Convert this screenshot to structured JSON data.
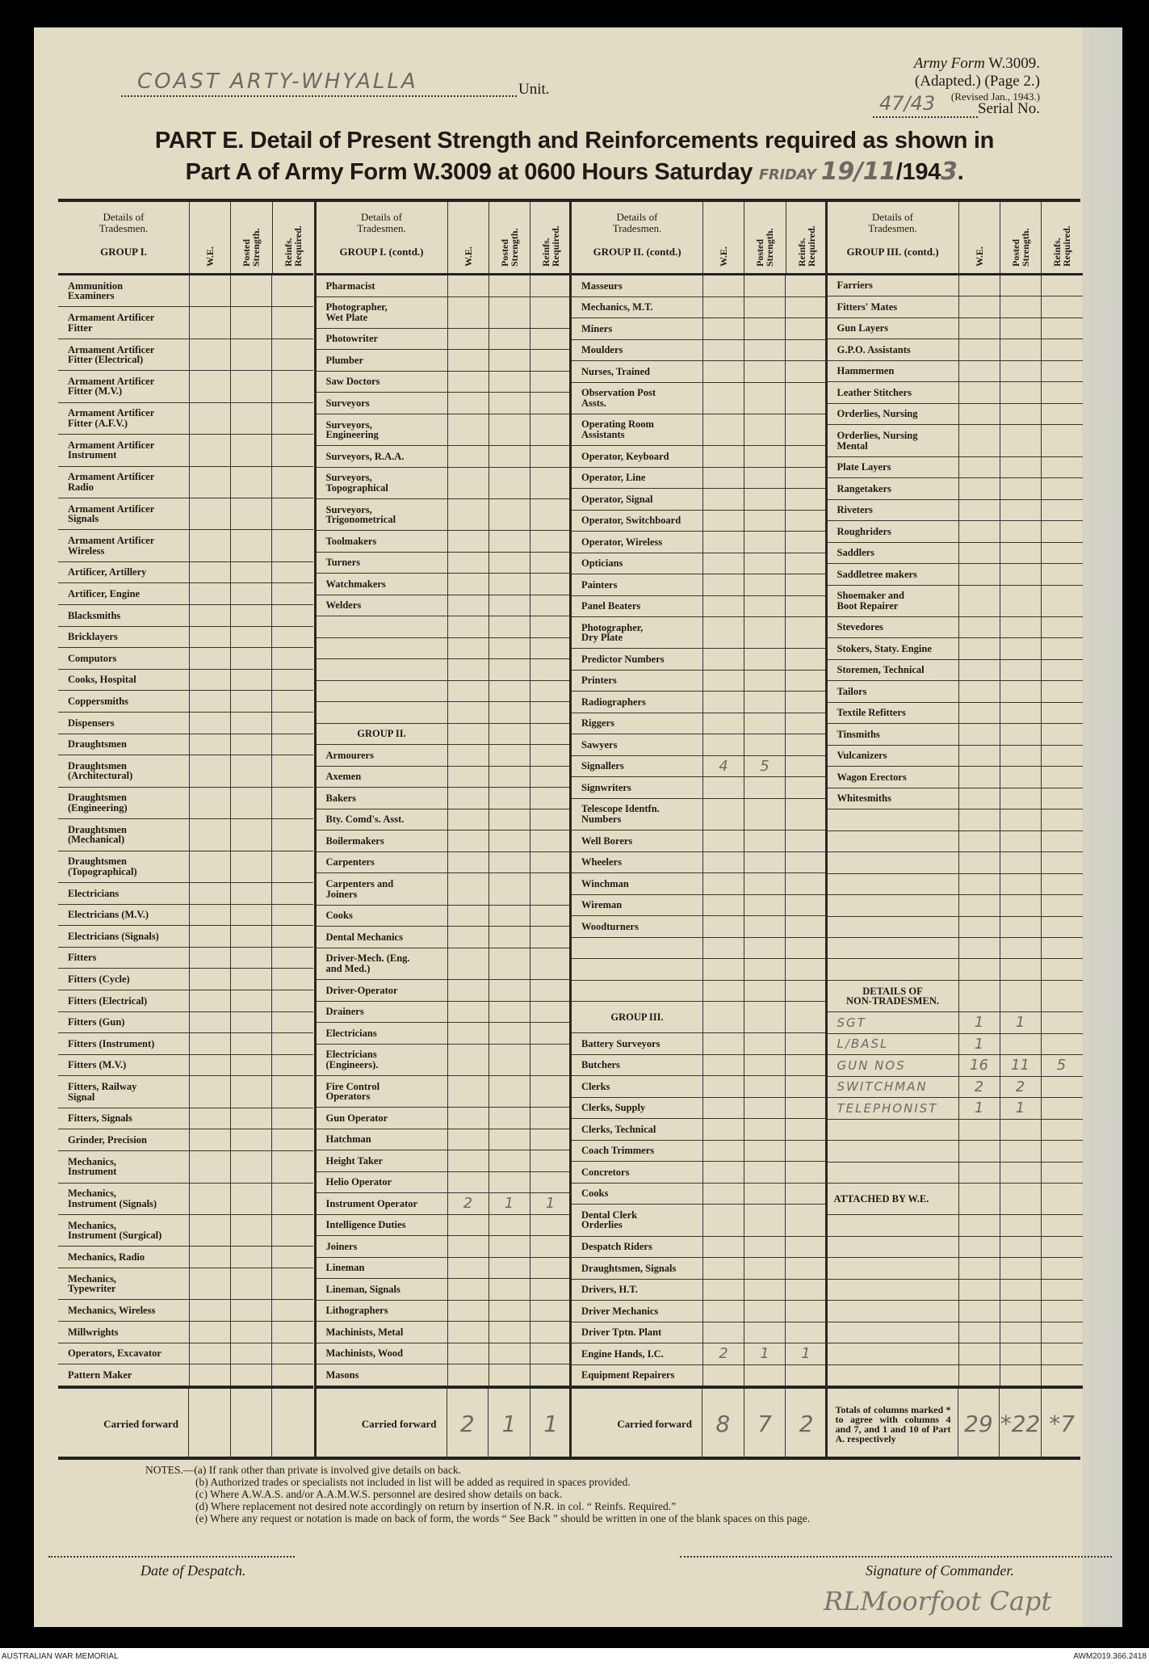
{
  "header": {
    "unit_value": "COAST ARTY-WHYALLA",
    "unit_label": "Unit.",
    "form_line1_italic": "Army Form",
    "form_line1_code": "W.3009.",
    "form_line2": "(Adapted.) (Page 2.)",
    "form_line3": "(Revised Jan., 1943.)",
    "serial_value": "47/43",
    "serial_label": "Serial No.",
    "title_line1": "PART E.  Detail of Present Strength and Reinforcements required as shown in",
    "title_line2_prefix": "Part A of Army Form W.3009 at 0600 Hours Saturday",
    "title_day_hand": "FRIDAY",
    "title_date_hand": "19/11",
    "title_year_prefix": "/194",
    "title_year_hand": "3",
    "title_end": "."
  },
  "table": {
    "col_header_details": "Details of\nTradesmen.",
    "col_we": "W.E.",
    "col_posted": "Posted\nStrength.",
    "col_reinf": "Reinfs.\nRequired.",
    "blocks": [
      {
        "group": "GROUP I.",
        "carried_forward": "Carried forward",
        "cf_values": [
          "",
          "",
          ""
        ],
        "rows": [
          {
            "label": "Ammunition\nExaminers"
          },
          {
            "label": "Armament Artificer\nFitter"
          },
          {
            "label": "Armament Artificer\nFitter (Electrical)"
          },
          {
            "label": "Armament Artificer\nFitter (M.V.)"
          },
          {
            "label": "Armament Artificer\nFitter (A.F.V.)"
          },
          {
            "label": "Armament Artificer\nInstrument"
          },
          {
            "label": "Armament Artificer\nRadio"
          },
          {
            "label": "Armament Artificer\nSignals"
          },
          {
            "label": "Armament Artificer\nWireless"
          },
          {
            "label": "Artificer, Artillery"
          },
          {
            "label": "Artificer, Engine"
          },
          {
            "label": "Blacksmiths"
          },
          {
            "label": "Bricklayers"
          },
          {
            "label": "Computors"
          },
          {
            "label": "Cooks, Hospital"
          },
          {
            "label": "Coppersmiths"
          },
          {
            "label": "Dispensers"
          },
          {
            "label": "Draughtsmen"
          },
          {
            "label": "Draughtsmen\n(Architectural)"
          },
          {
            "label": "Draughtsmen\n(Engineering)"
          },
          {
            "label": "Draughtsmen\n(Mechanical)"
          },
          {
            "label": "Draughtsmen\n(Topographical)"
          },
          {
            "label": "Electricians"
          },
          {
            "label": "Electricians (M.V.)"
          },
          {
            "label": "Electricians (Signals)"
          },
          {
            "label": "Fitters"
          },
          {
            "label": "Fitters (Cycle)"
          },
          {
            "label": "Fitters (Electrical)"
          },
          {
            "label": "Fitters (Gun)"
          },
          {
            "label": "Fitters (Instrument)"
          },
          {
            "label": "Fitters (M.V.)"
          },
          {
            "label": "Fitters, Railway\nSignal"
          },
          {
            "label": "Fitters, Signals"
          },
          {
            "label": "Grinder, Precision"
          },
          {
            "label": "Mechanics,\nInstrument"
          },
          {
            "label": "Mechanics,\nInstrument (Signals)"
          },
          {
            "label": "Mechanics,\nInstrument (Surgical)"
          },
          {
            "label": "Mechanics, Radio"
          },
          {
            "label": "Mechanics,\nTypewriter"
          },
          {
            "label": "Mechanics, Wireless"
          },
          {
            "label": "Millwrights"
          },
          {
            "label": "Operators, Excavator"
          },
          {
            "label": "Pattern Maker"
          }
        ]
      },
      {
        "group": "GROUP I. (contd.)",
        "carried_forward": "Carried forward",
        "cf_values": [
          "2",
          "1",
          "1"
        ],
        "rows": [
          {
            "label": "Pharmacist"
          },
          {
            "label": "Photographer,\nWet Plate"
          },
          {
            "label": "Photowriter"
          },
          {
            "label": "Plumber"
          },
          {
            "label": "Saw Doctors"
          },
          {
            "label": "Surveyors"
          },
          {
            "label": "Surveyors,\nEngineering"
          },
          {
            "label": "Surveyors, R.A.A."
          },
          {
            "label": "Surveyors,\nTopographical"
          },
          {
            "label": "Surveyors,\nTrigonometrical"
          },
          {
            "label": "Toolmakers"
          },
          {
            "label": "Turners"
          },
          {
            "label": "Watchmakers"
          },
          {
            "label": "Welders"
          },
          {
            "label": ""
          },
          {
            "label": ""
          },
          {
            "label": ""
          },
          {
            "label": ""
          },
          {
            "label": ""
          },
          {
            "label": "GROUP II.",
            "type": "heading"
          },
          {
            "label": "Armourers"
          },
          {
            "label": "Axemen"
          },
          {
            "label": "Bakers"
          },
          {
            "label": "Bty. Comd's. Asst."
          },
          {
            "label": "Boilermakers"
          },
          {
            "label": "Carpenters"
          },
          {
            "label": "Carpenters and\nJoiners"
          },
          {
            "label": "Cooks"
          },
          {
            "label": "Dental Mechanics"
          },
          {
            "label": "Driver-Mech. (Eng.\nand Med.)"
          },
          {
            "label": "Driver-Operator"
          },
          {
            "label": "Drainers"
          },
          {
            "label": "Electricians"
          },
          {
            "label": "Electricians\n(Engineers)."
          },
          {
            "label": "Fire Control\nOperators"
          },
          {
            "label": "Gun Operator"
          },
          {
            "label": "Hatchman"
          },
          {
            "label": "Height Taker"
          },
          {
            "label": "Helio Operator"
          },
          {
            "label": "Instrument Operator",
            "we": "2",
            "ps": "1",
            "rr": "1"
          },
          {
            "label": "Intelligence Duties"
          },
          {
            "label": "Joiners"
          },
          {
            "label": "Lineman"
          },
          {
            "label": "Lineman, Signals"
          },
          {
            "label": "Lithographers"
          },
          {
            "label": "Machinists, Metal"
          },
          {
            "label": "Machinists, Wood"
          },
          {
            "label": "Masons"
          }
        ]
      },
      {
        "group": "GROUP II. (contd.)",
        "carried_forward": "Carried forward",
        "cf_values": [
          "8",
          "7",
          "2"
        ],
        "rows": [
          {
            "label": "Masseurs"
          },
          {
            "label": "Mechanics, M.T."
          },
          {
            "label": "Miners"
          },
          {
            "label": "Moulders"
          },
          {
            "label": "Nurses, Trained"
          },
          {
            "label": "Observation Post\nAssts."
          },
          {
            "label": "Operating Room\nAssistants"
          },
          {
            "label": "Operator, Keyboard"
          },
          {
            "label": "Operator, Line"
          },
          {
            "label": "Operator, Signal"
          },
          {
            "label": "Operator, Switchboard"
          },
          {
            "label": "Operator, Wireless"
          },
          {
            "label": "Opticians"
          },
          {
            "label": "Painters"
          },
          {
            "label": "Panel Beaters"
          },
          {
            "label": "Photographer,\nDry Plate"
          },
          {
            "label": "Predictor Numbers"
          },
          {
            "label": "Printers"
          },
          {
            "label": "Radiographers"
          },
          {
            "label": "Riggers"
          },
          {
            "label": "Sawyers"
          },
          {
            "label": "Signallers",
            "we": "4",
            "ps": "5"
          },
          {
            "label": "Signwriters"
          },
          {
            "label": "Telescope Identfn.\nNumbers"
          },
          {
            "label": "Well Borers"
          },
          {
            "label": "Wheelers"
          },
          {
            "label": "Winchman"
          },
          {
            "label": "Wireman"
          },
          {
            "label": "Woodturners"
          },
          {
            "label": ""
          },
          {
            "label": ""
          },
          {
            "label": ""
          },
          {
            "label": "GROUP III.",
            "type": "heading",
            "tall": true
          },
          {
            "label": "Battery Surveyors"
          },
          {
            "label": "Butchers"
          },
          {
            "label": "Clerks"
          },
          {
            "label": "Clerks, Supply"
          },
          {
            "label": "Clerks, Technical"
          },
          {
            "label": "Coach Trimmers"
          },
          {
            "label": "Concretors"
          },
          {
            "label": "Cooks"
          },
          {
            "label": "Dental Clerk\nOrderlies"
          },
          {
            "label": "Despatch Riders"
          },
          {
            "label": "Draughtsmen, Signals"
          },
          {
            "label": "Drivers, H.T."
          },
          {
            "label": "Driver Mechanics"
          },
          {
            "label": "Driver Tptn. Plant"
          },
          {
            "label": "Engine Hands, I.C.",
            "we": "2",
            "ps": "1",
            "rr": "1"
          },
          {
            "label": "Equipment Repairers"
          }
        ]
      },
      {
        "group": "GROUP III. (contd.)",
        "carried_forward": "Totals of columns marked * to agree with columns 4 and 7, and 1 and 10 of Part A. respectively",
        "cf_values": [
          "29",
          "*22",
          "*7"
        ],
        "rows": [
          {
            "label": "Farriers"
          },
          {
            "label": "Fitters' Mates"
          },
          {
            "label": "Gun Layers"
          },
          {
            "label": "G.P.O. Assistants"
          },
          {
            "label": "Hammermen"
          },
          {
            "label": "Leather Stitchers"
          },
          {
            "label": "Orderlies, Nursing"
          },
          {
            "label": "Orderlies, Nursing\nMental"
          },
          {
            "label": "Plate Layers"
          },
          {
            "label": "Rangetakers"
          },
          {
            "label": "Riveters"
          },
          {
            "label": "Roughriders"
          },
          {
            "label": "Saddlers"
          },
          {
            "label": "Saddletree makers"
          },
          {
            "label": "Shoemaker and\nBoot Repairer"
          },
          {
            "label": "Stevedores"
          },
          {
            "label": "Stokers, Staty. Engine"
          },
          {
            "label": "Storemen, Technical"
          },
          {
            "label": "Tailors"
          },
          {
            "label": "Textile Refitters"
          },
          {
            "label": "Tinsmiths"
          },
          {
            "label": "Vulcanizers"
          },
          {
            "label": "Wagon Erectors"
          },
          {
            "label": "Whitesmiths"
          },
          {
            "label": ""
          },
          {
            "label": ""
          },
          {
            "label": ""
          },
          {
            "label": ""
          },
          {
            "label": ""
          },
          {
            "label": ""
          },
          {
            "label": ""
          },
          {
            "label": ""
          },
          {
            "label": "DETAILS OF\nNON-TRADESMEN.",
            "type": "heading",
            "tall": true
          },
          {
            "label": "SGT",
            "type": "hand",
            "we": "1",
            "ps": "1"
          },
          {
            "label": "L/BASL",
            "type": "hand",
            "we": "1"
          },
          {
            "label": "GUN NOS",
            "type": "hand",
            "we": "16",
            "ps": "11",
            "rr": "5"
          },
          {
            "label": "SWITCHMAN",
            "type": "hand",
            "we": "2",
            "ps": "2"
          },
          {
            "label": "TELEPHONIST",
            "type": "hand",
            "we": "1",
            "ps": "1"
          },
          {
            "label": ""
          },
          {
            "label": ""
          },
          {
            "label": ""
          },
          {
            "label": "ATTACHED BY W.E.",
            "type": "heading",
            "tall": true,
            "left": true
          },
          {
            "label": ""
          },
          {
            "label": ""
          },
          {
            "label": ""
          },
          {
            "label": ""
          },
          {
            "label": ""
          },
          {
            "label": ""
          },
          {
            "label": ""
          },
          {
            "label": ""
          }
        ]
      }
    ]
  },
  "notes": [
    "NOTES.—(a) If rank other than private is involved give details on back.",
    "(b) Authorized trades or specialists not included in list will be added as required in spaces provided.",
    "(c) Where A.W.A.S. and/or A.A.M.W.S. personnel are desired show details on back.",
    "(d) Where replacement not desired note accordingly on return by insertion of N.R. in col. “ Reinfs. Required.”",
    "(e) Where any request or notation is made on back of form, the words “ See Back ” should be written in one of the blank spaces on this page."
  ],
  "footer": {
    "date_label": "Date of Despatch.",
    "signature_label": "Signature of Commander.",
    "signature_hand": "RLMoorfoot Capt"
  },
  "archive": {
    "left_caption": "AUSTRALIAN WAR MEMORIAL",
    "right_caption": "AWM2019.366.2418"
  }
}
